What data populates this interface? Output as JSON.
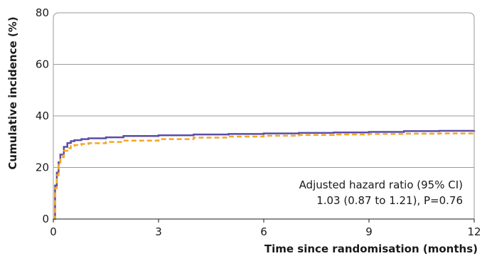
{
  "chart_data": {
    "type": "line",
    "xlabel": "Time since randomisation (months)",
    "ylabel": "Cumulative incidence (%)",
    "xlim": [
      0,
      12
    ],
    "ylim": [
      0,
      80
    ],
    "x_ticks": [
      "0",
      "3",
      "6",
      "9",
      "12"
    ],
    "y_ticks": [
      "0",
      "20",
      "40",
      "60",
      "80"
    ],
    "grid": "horizontal",
    "annotation": {
      "line1": "Adjusted hazard ratio (95% CI)",
      "line2": "1.03 (0.87 to 1.21), P=0.76"
    },
    "series": [
      {
        "color": "#5b4da6",
        "style": "solid",
        "x": [
          0,
          0.05,
          0.1,
          0.15,
          0.2,
          0.3,
          0.4,
          0.5,
          0.6,
          0.8,
          1.0,
          1.5,
          2.0,
          3.0,
          4.0,
          5.0,
          6.0,
          7.0,
          8.0,
          9.0,
          10.0,
          11.0,
          12.0
        ],
        "y": [
          0,
          13,
          18,
          22,
          25,
          28,
          29.5,
          30.2,
          30.6,
          31.0,
          31.3,
          31.7,
          32.2,
          32.5,
          32.8,
          33.0,
          33.2,
          33.4,
          33.6,
          33.8,
          34.1,
          34.2,
          34.3
        ]
      },
      {
        "color": "#f5a623",
        "style": "dashed",
        "x": [
          0,
          0.05,
          0.1,
          0.15,
          0.2,
          0.3,
          0.4,
          0.5,
          0.6,
          0.8,
          1.0,
          1.5,
          2.0,
          3.0,
          4.0,
          5.0,
          6.0,
          7.0,
          8.0,
          9.0,
          10.0,
          11.0,
          12.0
        ],
        "y": [
          0,
          12,
          17,
          21,
          24,
          26.5,
          27.5,
          28.3,
          28.7,
          29.1,
          29.4,
          29.9,
          30.4,
          31.0,
          31.6,
          32.0,
          32.3,
          32.6,
          32.8,
          33.0,
          33.1,
          33.2,
          33.3
        ]
      }
    ]
  }
}
